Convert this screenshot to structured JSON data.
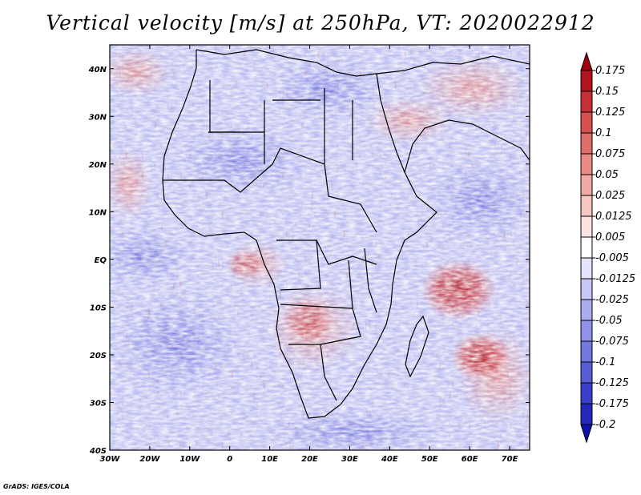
{
  "title": "Vertical velocity [m/s] at 250hPa, VT: 2020022912",
  "credit": "GrADS: IGES/COLA",
  "map": {
    "lon_labels": [
      "30W",
      "20W",
      "10W",
      "0",
      "10E",
      "20E",
      "30E",
      "40E",
      "50E",
      "60E",
      "70E"
    ],
    "lat_labels": [
      "40N",
      "30N",
      "20N",
      "10N",
      "EQ",
      "10S",
      "20S",
      "30S",
      "40S"
    ]
  },
  "colorbar": {
    "labels": [
      "0.175",
      "0.15",
      "0.125",
      "0.1",
      "0.075",
      "0.05",
      "0.025",
      "0.0125",
      "0.005",
      "-0.005",
      "-0.0125",
      "-0.025",
      "-0.05",
      "-0.075",
      "-0.1",
      "-0.125",
      "-0.175",
      "-0.2"
    ],
    "colors": [
      "#a0000f",
      "#b2141e",
      "#c52f35",
      "#d5504e",
      "#e06e68",
      "#e98c86",
      "#f0aaa4",
      "#f6c6c2",
      "#fbe3e1",
      "#ffffff",
      "#e3e4fb",
      "#c7c8f5",
      "#abadef",
      "#8f92e8",
      "#7377e0",
      "#575cd7",
      "#3b40cc",
      "#2328bd",
      "#0e12a6"
    ]
  }
}
